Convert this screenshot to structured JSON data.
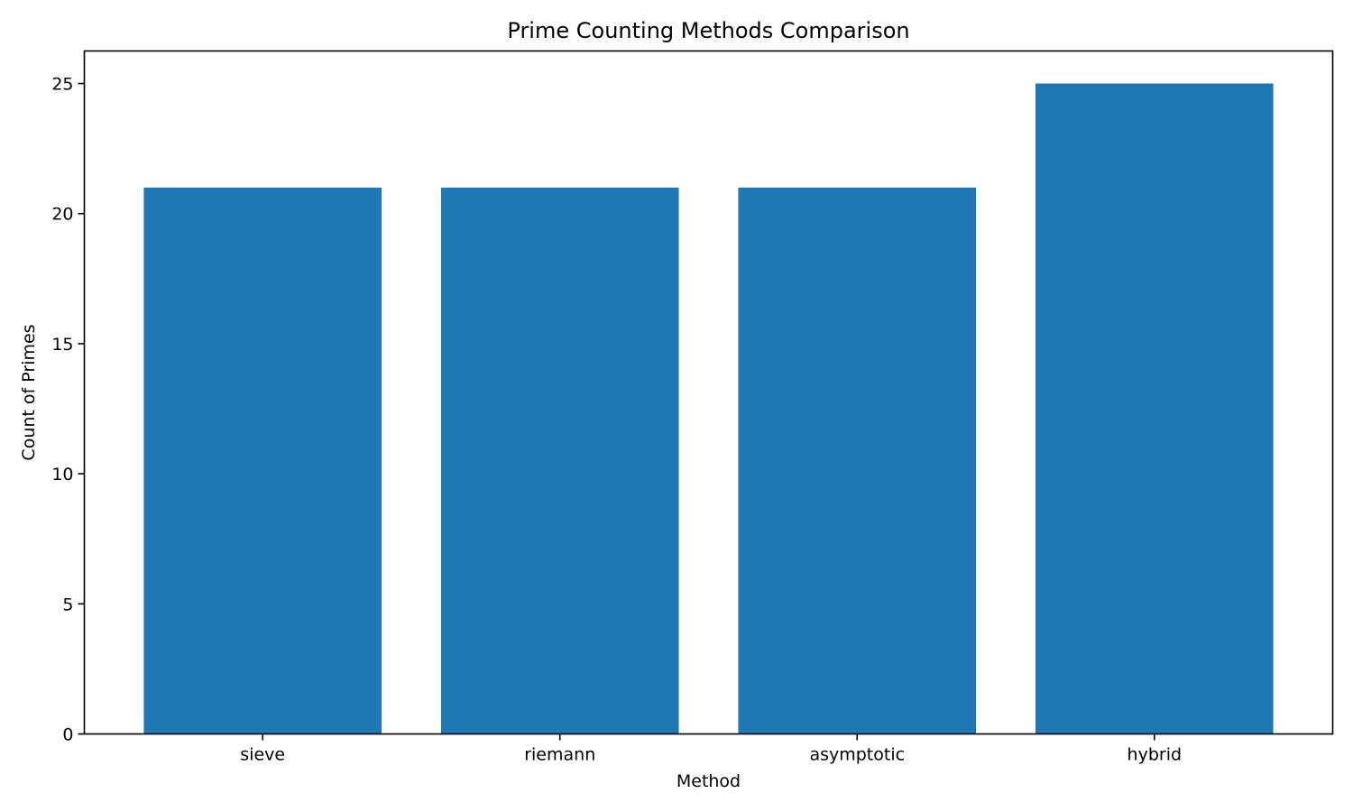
{
  "chart_data": {
    "type": "bar",
    "title": "Prime Counting Methods Comparison",
    "xlabel": "Method",
    "ylabel": "Count of Primes",
    "categories": [
      "sieve",
      "riemann",
      "asymptotic",
      "hybrid"
    ],
    "values": [
      21,
      21,
      21,
      25
    ],
    "ylim": [
      0,
      26.25
    ],
    "yticks": [
      0,
      5,
      10,
      15,
      20,
      25
    ],
    "ytick_labels": [
      "0",
      "5",
      "10",
      "15",
      "20",
      "25"
    ],
    "bar_color": "#1f77b4",
    "grid": false,
    "legend": "none"
  }
}
